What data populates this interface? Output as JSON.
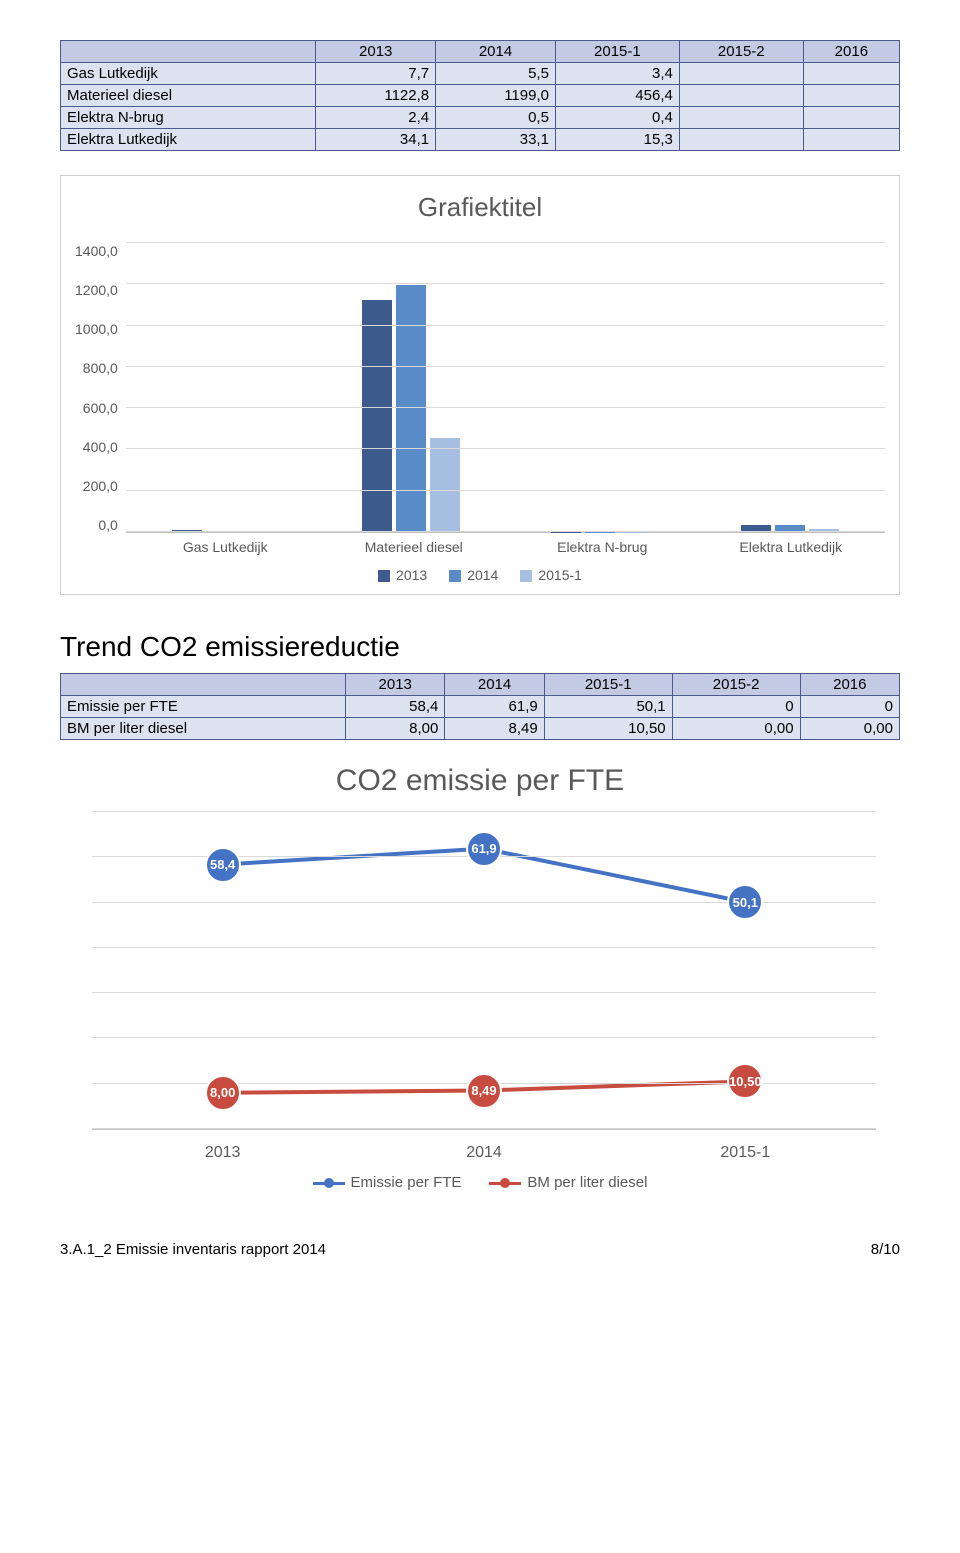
{
  "table1": {
    "header_color": "#c3cbe4",
    "row_color": "#dde2f0",
    "columns": [
      "",
      "2013",
      "2014",
      "2015-1",
      "2015-2",
      "2016"
    ],
    "rows": [
      {
        "label": "Gas Lutkedijk",
        "v": [
          "7,7",
          "5,5",
          "3,4",
          "",
          ""
        ]
      },
      {
        "label": "Materieel diesel",
        "v": [
          "1122,8",
          "1199,0",
          "456,4",
          "",
          ""
        ]
      },
      {
        "label": "Elektra N-brug",
        "v": [
          "2,4",
          "0,5",
          "0,4",
          "",
          ""
        ]
      },
      {
        "label": "Elektra Lutkedijk",
        "v": [
          "34,1",
          "33,1",
          "15,3",
          "",
          ""
        ]
      }
    ]
  },
  "barchart": {
    "title": "Grafiektitel",
    "categories": [
      "Gas Lutkedijk",
      "Materieel diesel",
      "Elektra N-brug",
      "Elektra Lutkedijk"
    ],
    "series": [
      {
        "name": "2013",
        "color": "#3d5b8c",
        "values": [
          7.7,
          1122.8,
          2.4,
          34.1
        ]
      },
      {
        "name": "2014",
        "color": "#5a8bc9",
        "values": [
          5.5,
          1199.0,
          0.5,
          33.1
        ]
      },
      {
        "name": "2015-1",
        "color": "#a6bfe0",
        "values": [
          3.4,
          456.4,
          0.4,
          15.3
        ]
      }
    ],
    "ymax": 1400,
    "ystep": 200,
    "grid_color": "#d9d9d9",
    "label_color": "#595959",
    "title_fontsize": 26
  },
  "trend_title": "Trend CO2 emissiereductie",
  "table2": {
    "header_color": "#c3cbe4",
    "row_color": "#dde2f0",
    "columns": [
      "",
      "2013",
      "2014",
      "2015-1",
      "2015-2",
      "2016"
    ],
    "rows": [
      {
        "label": "Emissie per FTE",
        "v": [
          "58,4",
          "61,9",
          "50,1",
          "0",
          "0"
        ]
      },
      {
        "label": "BM per liter diesel",
        "v": [
          "8,00",
          "8,49",
          "10,50",
          "0,00",
          "0,00"
        ]
      }
    ]
  },
  "linechart": {
    "title": "CO2 emissie per FTE",
    "x": [
      "2013",
      "2014",
      "2015-1"
    ],
    "ymax": 70,
    "grid_steps": 7,
    "grid_color": "#d9d9d9",
    "label_color": "#595959",
    "series": [
      {
        "name": "Emissie per FTE",
        "color": "#4472c4",
        "values": [
          58.4,
          61.9,
          50.1
        ],
        "labels": [
          "58,4",
          "61,9",
          "50,1"
        ]
      },
      {
        "name": "BM per liter diesel",
        "color": "#c74b3e",
        "values": [
          8.0,
          8.49,
          10.5
        ],
        "labels": [
          "8,00",
          "8,49",
          "10,50"
        ]
      }
    ],
    "line_width": 4,
    "marker_radius": 18
  },
  "footer": {
    "left": "3.A.1_2 Emissie inventaris rapport 2014",
    "right": "8/10"
  }
}
